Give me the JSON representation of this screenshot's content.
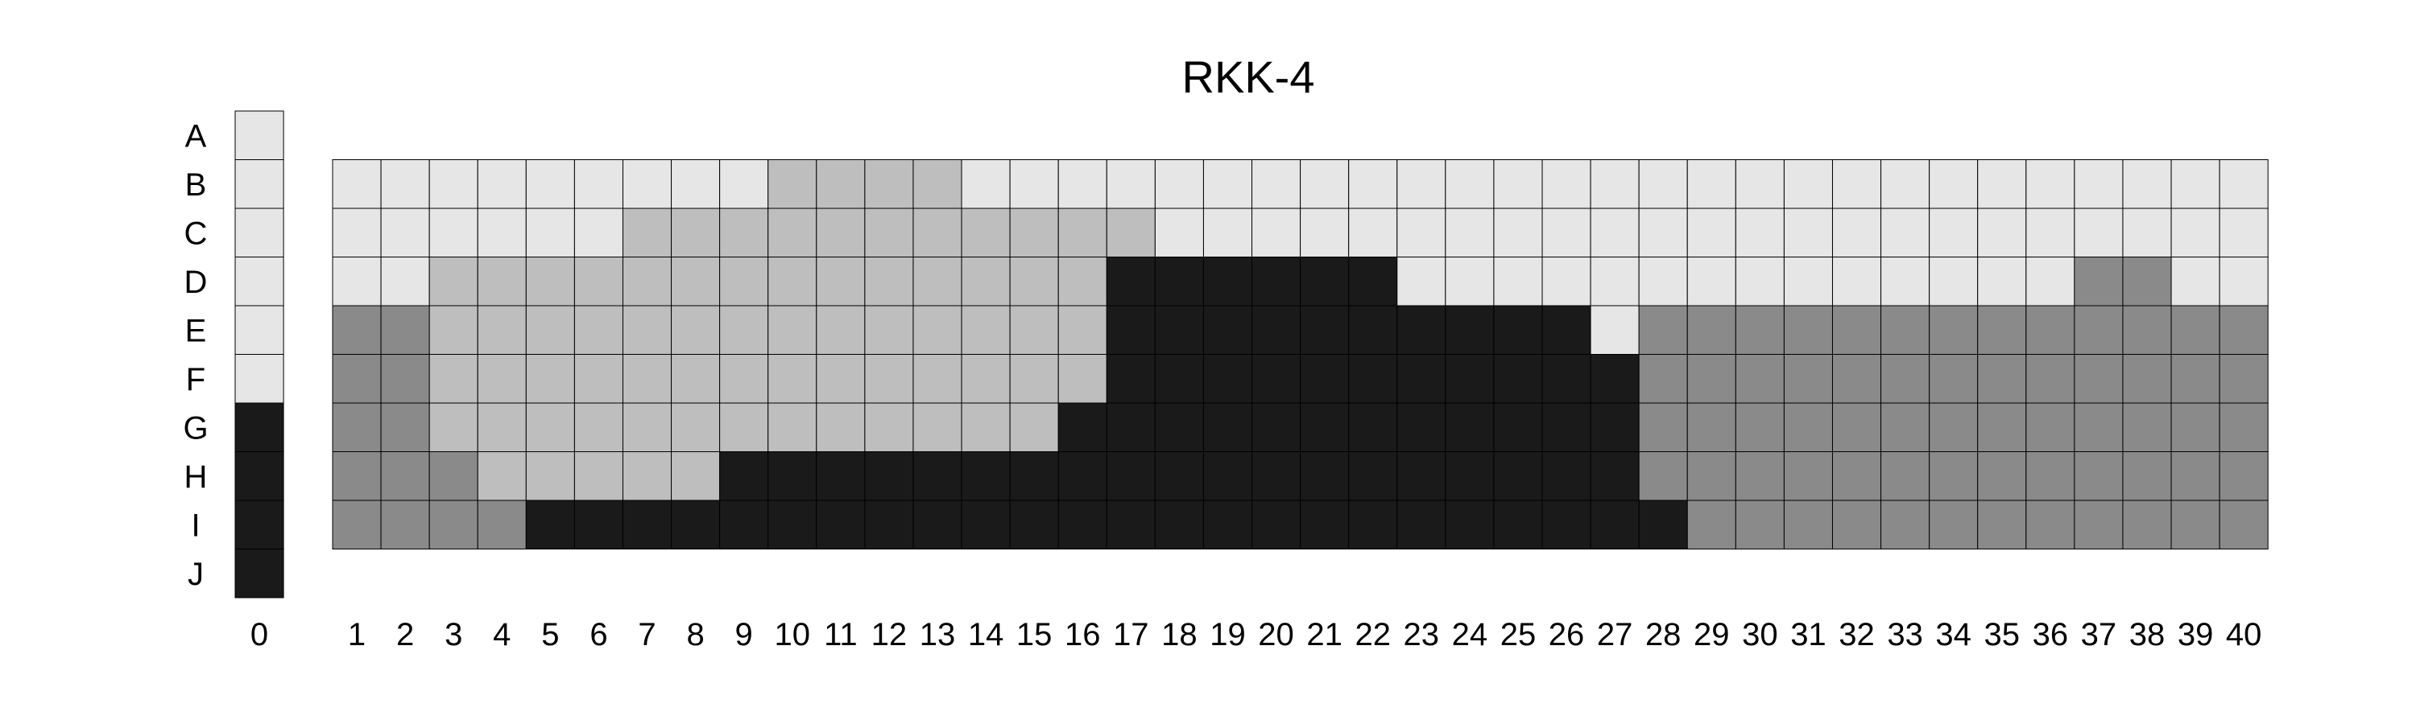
{
  "chart_data": {
    "type": "heatmap",
    "title": "RKK-4",
    "rows": [
      "A",
      "B",
      "C",
      "D",
      "E",
      "F",
      "G",
      "H",
      "I",
      "J"
    ],
    "column_0": {
      "label": "0",
      "values": [
        1,
        1,
        1,
        1,
        1,
        1,
        4,
        4,
        4,
        4
      ]
    },
    "columns": [
      "1",
      "2",
      "3",
      "4",
      "5",
      "6",
      "7",
      "8",
      "9",
      "10",
      "11",
      "12",
      "13",
      "14",
      "15",
      "16",
      "17",
      "18",
      "19",
      "20",
      "21",
      "22",
      "23",
      "24",
      "25",
      "26",
      "27",
      "28",
      "29",
      "30",
      "31",
      "32",
      "33",
      "34",
      "35",
      "36",
      "37",
      "38",
      "39",
      "40"
    ],
    "grid_rows": [
      "B",
      "C",
      "D",
      "E",
      "F",
      "G",
      "H",
      "I"
    ],
    "values": [
      [
        1,
        1,
        1,
        1,
        1,
        1,
        1,
        1,
        1,
        2,
        2,
        2,
        2,
        1,
        1,
        1,
        1,
        1,
        1,
        1,
        1,
        1,
        1,
        1,
        1,
        1,
        1,
        1,
        1,
        1,
        1,
        1,
        1,
        1,
        1,
        1,
        1,
        1,
        1,
        1
      ],
      [
        1,
        1,
        1,
        1,
        1,
        1,
        2,
        2,
        2,
        2,
        2,
        2,
        2,
        2,
        2,
        2,
        2,
        1,
        1,
        1,
        1,
        1,
        1,
        1,
        1,
        1,
        1,
        1,
        1,
        1,
        1,
        1,
        1,
        1,
        1,
        1,
        1,
        1,
        1,
        1
      ],
      [
        1,
        1,
        2,
        2,
        2,
        2,
        2,
        2,
        2,
        2,
        2,
        2,
        2,
        2,
        2,
        2,
        4,
        4,
        4,
        4,
        4,
        4,
        1,
        1,
        1,
        1,
        1,
        1,
        1,
        1,
        1,
        1,
        1,
        1,
        1,
        1,
        3,
        3,
        1,
        1
      ],
      [
        3,
        3,
        2,
        2,
        2,
        2,
        2,
        2,
        2,
        2,
        2,
        2,
        2,
        2,
        2,
        2,
        4,
        4,
        4,
        4,
        4,
        4,
        4,
        4,
        4,
        4,
        1,
        3,
        3,
        3,
        3,
        3,
        3,
        3,
        3,
        3,
        3,
        3,
        3,
        3
      ],
      [
        3,
        3,
        2,
        2,
        2,
        2,
        2,
        2,
        2,
        2,
        2,
        2,
        2,
        2,
        2,
        2,
        4,
        4,
        4,
        4,
        4,
        4,
        4,
        4,
        4,
        4,
        4,
        3,
        3,
        3,
        3,
        3,
        3,
        3,
        3,
        3,
        3,
        3,
        3,
        3
      ],
      [
        3,
        3,
        2,
        2,
        2,
        2,
        2,
        2,
        2,
        2,
        2,
        2,
        2,
        2,
        2,
        4,
        4,
        4,
        4,
        4,
        4,
        4,
        4,
        4,
        4,
        4,
        4,
        3,
        3,
        3,
        3,
        3,
        3,
        3,
        3,
        3,
        3,
        3,
        3,
        3
      ],
      [
        3,
        3,
        3,
        2,
        2,
        2,
        2,
        2,
        4,
        4,
        4,
        4,
        4,
        4,
        4,
        4,
        4,
        4,
        4,
        4,
        4,
        4,
        4,
        4,
        4,
        4,
        4,
        3,
        3,
        3,
        3,
        3,
        3,
        3,
        3,
        3,
        3,
        3,
        3,
        3
      ],
      [
        3,
        3,
        3,
        3,
        4,
        4,
        4,
        4,
        4,
        4,
        4,
        4,
        4,
        4,
        4,
        4,
        4,
        4,
        4,
        4,
        4,
        4,
        4,
        4,
        4,
        4,
        4,
        4,
        3,
        3,
        3,
        3,
        3,
        3,
        3,
        3,
        3,
        3,
        3,
        3
      ]
    ],
    "color_scale": {
      "1": "#e6e6e6",
      "2": "#bebebe",
      "3": "#8a8a8a",
      "4": "#1a1a1a"
    },
    "grid_lines": true,
    "legend": "none"
  }
}
